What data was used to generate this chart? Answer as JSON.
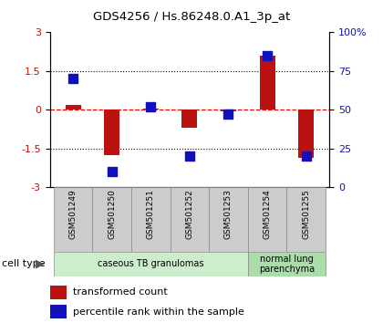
{
  "title": "GDS4256 / Hs.86248.0.A1_3p_at",
  "samples": [
    "GSM501249",
    "GSM501250",
    "GSM501251",
    "GSM501252",
    "GSM501253",
    "GSM501254",
    "GSM501255"
  ],
  "transformed_count": [
    0.2,
    -1.75,
    0.05,
    -0.7,
    -0.05,
    2.1,
    -1.85
  ],
  "percentile_rank": [
    70,
    10,
    52,
    20,
    47,
    85,
    20
  ],
  "ylim_left": [
    -3,
    3
  ],
  "ylim_right": [
    0,
    100
  ],
  "yticks_left": [
    -3,
    -1.5,
    0,
    1.5,
    3
  ],
  "yticks_right": [
    0,
    25,
    50,
    75,
    100
  ],
  "ytick_labels_left": [
    "-3",
    "-1.5",
    "0",
    "1.5",
    "3"
  ],
  "ytick_labels_right": [
    "0",
    "25",
    "50",
    "75",
    "100%"
  ],
  "bar_color": "#bb1111",
  "scatter_color": "#1111bb",
  "bar_width": 0.4,
  "scatter_size": 50,
  "cell_type_groups": [
    {
      "label": "caseous TB granulomas",
      "samples": [
        0,
        1,
        2,
        3,
        4
      ],
      "color": "#cceecc"
    },
    {
      "label": "normal lung\nparenchyma",
      "samples": [
        5,
        6
      ],
      "color": "#aaddaa"
    }
  ],
  "legend_bar_label": "transformed count",
  "legend_scatter_label": "percentile rank within the sample",
  "cell_type_label": "cell type",
  "bg_color": "#ffffff",
  "tick_label_color_left": "#bb1111",
  "tick_label_color_right": "#1111bb",
  "plot_bg": "#ffffff",
  "sample_box_color": "#cccccc",
  "sample_box_edge": "#888888"
}
